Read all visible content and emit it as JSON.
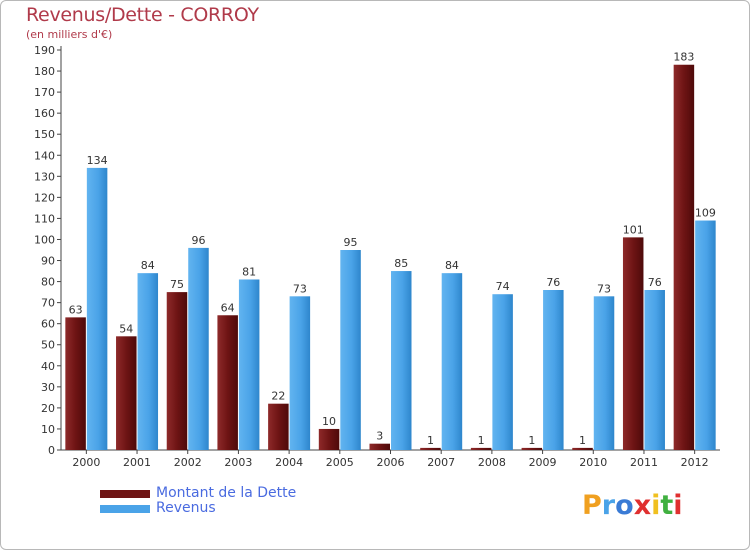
{
  "chart_data": {
    "type": "bar",
    "title": "Revenus/Dette - CORROY",
    "subtitle": "(en milliers d'€)",
    "categories": [
      "2000",
      "2001",
      "2002",
      "2003",
      "2004",
      "2005",
      "2006",
      "2007",
      "2008",
      "2009",
      "2010",
      "2011",
      "2012"
    ],
    "series": [
      {
        "name": "Montant de la Dette",
        "values": [
          63,
          54,
          75,
          64,
          22,
          10,
          3,
          1,
          1,
          1,
          1,
          101,
          183
        ],
        "color": "#7a1a1a"
      },
      {
        "name": "Revenus",
        "values": [
          134,
          84,
          96,
          81,
          73,
          95,
          85,
          84,
          74,
          76,
          73,
          76,
          109
        ],
        "color": "#4aa3e8"
      }
    ],
    "ylim": [
      0,
      190
    ],
    "yticks": [
      0,
      10,
      20,
      30,
      40,
      50,
      60,
      70,
      80,
      90,
      100,
      110,
      120,
      130,
      140,
      150,
      160,
      170,
      180,
      190
    ],
    "grid": false,
    "legend_position": "bottom-left"
  },
  "logo": {
    "text": "Proxiti",
    "letters": [
      "P",
      "r",
      "o",
      "x",
      "i",
      "t",
      "i"
    ],
    "colors": [
      "#f0a020",
      "#4aa3e8",
      "#3a7bd5",
      "#e03030",
      "#f0c020",
      "#40b040",
      "#e03030"
    ]
  }
}
